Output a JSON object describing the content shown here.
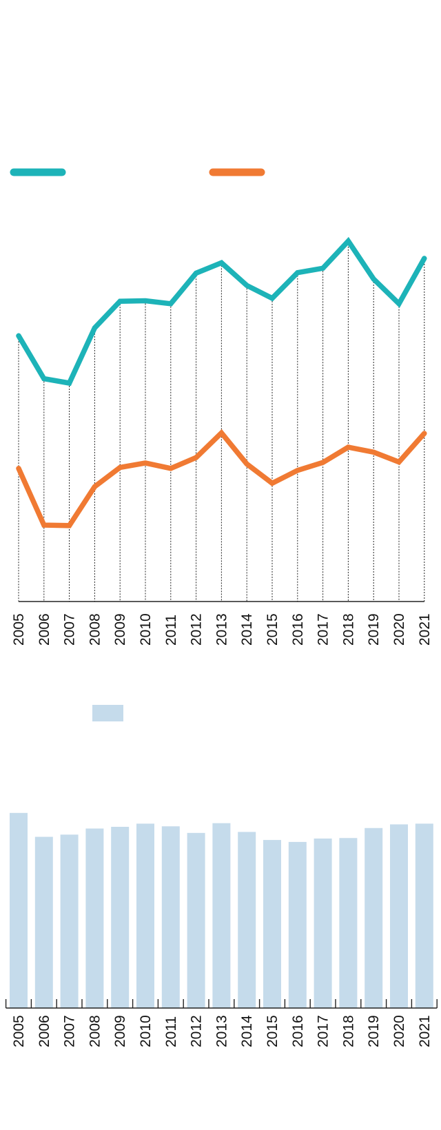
{
  "chart_data": [
    {
      "type": "line",
      "title": "",
      "xlabel": "",
      "ylabel": "",
      "categories": [
        "2005",
        "2006",
        "2007",
        "2008",
        "2009",
        "2010",
        "2011",
        "2012",
        "2013",
        "2014",
        "2015",
        "2016",
        "2017",
        "2018",
        "2019",
        "2020",
        "2021"
      ],
      "series": [
        {
          "color": "#1db3b8",
          "values": [
            53.9,
            45.2,
            44.3,
            55.5,
            60.9,
            61.0,
            60.4,
            66.6,
            68.7,
            64.1,
            61.5,
            66.7,
            67.6,
            73.1,
            65.4,
            60.4,
            69.6
          ]
        },
        {
          "color": "#f07a33",
          "values": [
            27.0,
            15.5,
            15.4,
            23.3,
            27.2,
            28.1,
            27.0,
            29.2,
            34.2,
            27.9,
            24.0,
            26.6,
            28.2,
            31.3,
            30.3,
            28.3,
            34.1
          ]
        }
      ],
      "ylim": [
        0,
        122
      ],
      "grid": "vertical dotted lines at each year",
      "legend": "top"
    },
    {
      "type": "bar",
      "title": "",
      "xlabel": "",
      "ylabel": "",
      "categories": [
        "2005",
        "2006",
        "2007",
        "2008",
        "2009",
        "2010",
        "2011",
        "2012",
        "2013",
        "2014",
        "2015",
        "2016",
        "2017",
        "2018",
        "2019",
        "2020",
        "2021"
      ],
      "series": [
        {
          "color": "#c5dbeb",
          "values": [
            80.0,
            70.2,
            71.1,
            73.6,
            74.3,
            75.6,
            74.5,
            71.8,
            75.8,
            72.2,
            68.9,
            68.1,
            69.5,
            69.7,
            73.8,
            75.3,
            75.6
          ]
        }
      ],
      "ylim": [
        0,
        100
      ],
      "grid": "off",
      "legend": "top"
    }
  ]
}
